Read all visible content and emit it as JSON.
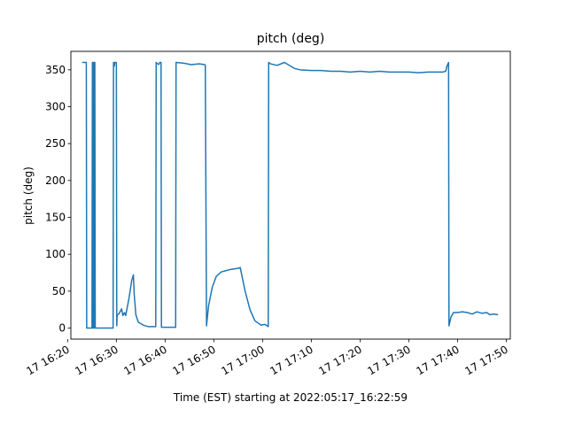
{
  "chart_data": {
    "type": "line",
    "title": "pitch (deg)",
    "xlabel": "Time (EST) starting at 2022:05:17_16:22:59",
    "ylabel": "pitch (deg)",
    "xlim": [
      "2022-05-17 16:20:40",
      "2022-05-17 17:50:50"
    ],
    "ylim": [
      -15,
      375
    ],
    "x_ticks": [
      "2022-05-17 16:20",
      "2022-05-17 16:30",
      "2022-05-17 16:40",
      "2022-05-17 16:50",
      "2022-05-17 17:00",
      "2022-05-17 17:10",
      "2022-05-17 17:20",
      "2022-05-17 17:30",
      "2022-05-17 17:40",
      "2022-05-17 17:50"
    ],
    "x_tick_labels": [
      "17 16:20",
      "17 16:30",
      "17 16:40",
      "17 16:50",
      "17 17:00",
      "17 17:10",
      "17 17:20",
      "17 17:30",
      "17 17:40",
      "17 17:50"
    ],
    "y_ticks": [
      0,
      50,
      100,
      150,
      200,
      250,
      300,
      350
    ],
    "y_tick_labels": [
      "0",
      "50",
      "100",
      "150",
      "200",
      "250",
      "300",
      "350"
    ],
    "grid": false,
    "line_color": "#1f77b4",
    "series": [
      {
        "x": [
          "2022-05-17 16:22:59",
          "2022-05-17 16:23:50",
          "2022-05-17 16:23:55",
          "2022-05-17 16:25:00",
          "2022-05-17 16:25:05",
          "2022-05-17 16:25:10",
          "2022-05-17 16:25:15",
          "2022-05-17 16:25:20",
          "2022-05-17 16:25:25",
          "2022-05-17 16:25:30",
          "2022-05-17 16:25:35",
          "2022-05-17 16:25:40",
          "2022-05-17 16:25:45",
          "2022-05-17 16:29:20",
          "2022-05-17 16:29:25",
          "2022-05-17 16:29:35",
          "2022-05-17 16:29:40",
          "2022-05-17 16:29:55",
          "2022-05-17 16:30:00",
          "2022-05-17 16:30:05",
          "2022-05-17 16:30:10",
          "2022-05-17 16:30:30",
          "2022-05-17 16:31:05",
          "2022-05-17 16:31:20",
          "2022-05-17 16:31:40",
          "2022-05-17 16:31:55",
          "2022-05-17 16:32:35",
          "2022-05-17 16:33:10",
          "2022-05-17 16:33:30",
          "2022-05-17 16:33:40",
          "2022-05-17 16:34:00",
          "2022-05-17 16:34:30",
          "2022-05-17 16:35:30",
          "2022-05-17 16:36:30",
          "2022-05-17 16:37:15",
          "2022-05-17 16:38:05",
          "2022-05-17 16:38:10",
          "2022-05-17 16:38:40",
          "2022-05-17 16:38:55",
          "2022-05-17 16:39:10",
          "2022-05-17 16:39:15",
          "2022-05-17 16:42:10",
          "2022-05-17 16:42:15",
          "2022-05-17 16:43:50",
          "2022-05-17 16:45:20",
          "2022-05-17 16:47:00",
          "2022-05-17 16:48:10",
          "2022-05-17 16:48:15",
          "2022-05-17 16:48:30",
          "2022-05-17 16:48:55",
          "2022-05-17 16:49:40",
          "2022-05-17 16:50:30",
          "2022-05-17 16:51:30",
          "2022-05-17 16:53:10",
          "2022-05-17 16:55:00",
          "2022-05-17 16:55:25",
          "2022-05-17 16:56:25",
          "2022-05-17 16:57:25",
          "2022-05-17 16:58:25",
          "2022-05-17 16:59:40",
          "2022-05-17 17:00:30",
          "2022-05-17 17:01:10",
          "2022-05-17 17:01:15",
          "2022-05-17 17:01:40",
          "2022-05-17 17:03:00",
          "2022-05-17 17:04:30",
          "2022-05-17 17:05:30",
          "2022-05-17 17:06:30",
          "2022-05-17 17:07:40",
          "2022-05-17 17:10:00",
          "2022-05-17 17:12:00",
          "2022-05-17 17:14:00",
          "2022-05-17 17:16:00",
          "2022-05-17 17:18:00",
          "2022-05-17 17:20:00",
          "2022-05-17 17:22:00",
          "2022-05-17 17:24:00",
          "2022-05-17 17:26:00",
          "2022-05-17 17:28:00",
          "2022-05-17 17:30:00",
          "2022-05-17 17:32:00",
          "2022-05-17 17:34:00",
          "2022-05-17 17:35:30",
          "2022-05-17 17:37:00",
          "2022-05-17 17:37:35",
          "2022-05-17 17:37:50",
          "2022-05-17 17:38:10",
          "2022-05-17 17:38:15",
          "2022-05-17 17:38:40",
          "2022-05-17 17:39:10",
          "2022-05-17 17:40:00",
          "2022-05-17 17:41:00",
          "2022-05-17 17:42:00",
          "2022-05-17 17:43:00",
          "2022-05-17 17:44:00",
          "2022-05-17 17:45:00",
          "2022-05-17 17:46:00",
          "2022-05-17 17:46:40",
          "2022-05-17 17:47:20",
          "2022-05-17 17:48:20"
        ],
        "y": [
          360,
          360,
          0,
          0,
          360,
          0,
          360,
          0,
          360,
          0,
          360,
          0,
          0,
          0,
          360,
          355,
          360,
          360,
          360,
          3,
          18,
          19,
          26,
          17,
          21,
          17,
          40,
          65,
          72,
          45,
          18,
          8,
          4,
          2,
          2,
          2,
          360,
          357,
          360,
          360,
          1,
          1,
          360,
          359,
          357,
          358,
          357,
          356,
          3,
          30,
          55,
          70,
          76,
          79,
          81,
          82,
          50,
          25,
          10,
          4,
          5,
          2,
          360,
          358,
          356,
          360,
          356,
          352,
          350,
          349,
          349,
          348,
          348,
          347,
          348,
          347,
          348,
          347,
          347,
          347,
          346,
          347,
          347,
          347,
          348,
          355,
          360,
          3,
          15,
          21,
          21,
          22,
          21,
          19,
          22,
          20,
          21,
          18,
          19,
          18
        ]
      }
    ]
  }
}
